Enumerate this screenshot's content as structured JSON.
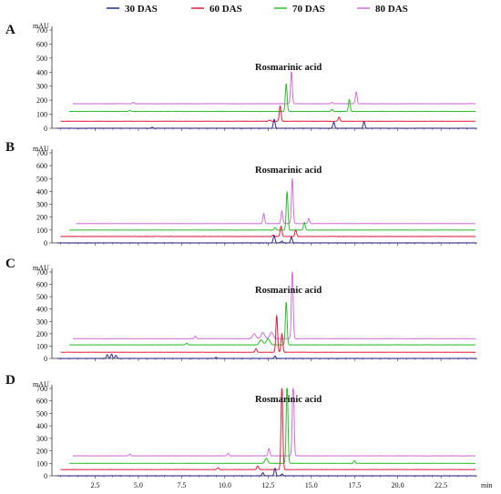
{
  "chart_data": {
    "type": "line",
    "legend": {
      "placement": "top",
      "entries": [
        {
          "label": "30 DAS",
          "color": "#2B2B8C"
        },
        {
          "label": "60 DAS",
          "color": "#E0203A"
        },
        {
          "label": "70 DAS",
          "color": "#2DBE2D"
        },
        {
          "label": "80 DAS",
          "color": "#CF6FD6"
        }
      ]
    },
    "x_unit": "min",
    "y_unit": "mAU",
    "xlim": [
      0,
      24.6
    ],
    "x_ticks": [
      "2.5",
      "5.0",
      "7.5",
      "10.0",
      "12.5",
      "15.0",
      "17.5",
      "20.0",
      "22.5"
    ],
    "grid": false,
    "panels": [
      {
        "letter": "A",
        "annotation": "Rosmarinic acid",
        "ylim": [
          0,
          700
        ],
        "y_ticks": [
          "0",
          "100",
          "200",
          "300",
          "400",
          "500",
          "600",
          "700"
        ],
        "series": [
          {
            "color": "#2B2B8C",
            "offset": 0,
            "x_start": 0.3,
            "peaks": [
              [
                12.85,
                65,
                0.05
              ],
              [
                16.3,
                45,
                0.05
              ],
              [
                18.05,
                48,
                0.05
              ],
              [
                5.8,
                8,
                0.05
              ]
            ]
          },
          {
            "color": "#E0203A",
            "offset": 50,
            "x_start": 0.5,
            "peaks": [
              [
                13.2,
                110,
                0.05
              ],
              [
                16.6,
                30,
                0.05
              ],
              [
                12.6,
                8,
                0.05
              ]
            ]
          },
          {
            "color": "#2DBE2D",
            "offset": 120,
            "x_start": 1.0,
            "peaks": [
              [
                13.55,
                200,
                0.05
              ],
              [
                17.2,
                85,
                0.05
              ],
              [
                16.2,
                15,
                0.05
              ],
              [
                4.5,
                8,
                0.05
              ]
            ]
          },
          {
            "color": "#CF6FD6",
            "offset": 175,
            "x_start": 1.2,
            "peaks": [
              [
                13.85,
                230,
                0.05
              ],
              [
                17.6,
                85,
                0.05
              ],
              [
                4.7,
                10,
                0.05
              ],
              [
                16.2,
                10,
                0.05
              ]
            ]
          }
        ]
      },
      {
        "letter": "B",
        "annotation": "Rosmarinic acid",
        "ylim": [
          0,
          700
        ],
        "y_ticks": [
          "0",
          "100",
          "200",
          "300",
          "400",
          "500",
          "600",
          "700"
        ],
        "series": [
          {
            "color": "#2B2B8C",
            "offset": 0,
            "x_start": 0.3,
            "peaks": [
              [
                12.85,
                60,
                0.05
              ],
              [
                13.85,
                45,
                0.05
              ],
              [
                13.3,
                15,
                0.05
              ]
            ]
          },
          {
            "color": "#E0203A",
            "offset": 50,
            "x_start": 0.5,
            "peaks": [
              [
                13.25,
                80,
                0.05
              ],
              [
                14.1,
                50,
                0.05
              ],
              [
                12.8,
                10,
                0.05
              ]
            ]
          },
          {
            "color": "#2DBE2D",
            "offset": 100,
            "x_start": 1.0,
            "peaks": [
              [
                13.6,
                300,
                0.05
              ],
              [
                14.6,
                60,
                0.05
              ],
              [
                12.9,
                20,
                0.05
              ]
            ]
          },
          {
            "color": "#CF6FD6",
            "offset": 150,
            "x_start": 1.4,
            "peaks": [
              [
                12.25,
                80,
                0.05
              ],
              [
                13.9,
                350,
                0.05
              ],
              [
                13.3,
                100,
                0.05
              ],
              [
                14.85,
                40,
                0.05
              ]
            ]
          }
        ]
      },
      {
        "letter": "C",
        "annotation": "Rosmarinic acid",
        "ylim": [
          0,
          700
        ],
        "y_ticks": [
          "0",
          "100",
          "200",
          "300",
          "400",
          "500",
          "600",
          "700"
        ],
        "series": [
          {
            "color": "#2B2B8C",
            "offset": 0,
            "x_start": 0.3,
            "peaks": [
              [
                3.2,
                30,
                0.05
              ],
              [
                3.45,
                35,
                0.05
              ],
              [
                3.7,
                25,
                0.05
              ],
              [
                12.9,
                20,
                0.05
              ],
              [
                9.5,
                10,
                0.05
              ]
            ]
          },
          {
            "color": "#E0203A",
            "offset": 50,
            "x_start": 0.5,
            "peaks": [
              [
                13.0,
                300,
                0.05
              ],
              [
                13.3,
                150,
                0.05
              ],
              [
                11.8,
                30,
                0.05
              ]
            ]
          },
          {
            "color": "#2DBE2D",
            "offset": 110,
            "x_start": 1.0,
            "peaks": [
              [
                13.55,
                350,
                0.05
              ],
              [
                12.5,
                50,
                0.1
              ],
              [
                12.1,
                40,
                0.1
              ],
              [
                7.8,
                15,
                0.05
              ]
            ]
          },
          {
            "color": "#CF6FD6",
            "offset": 160,
            "x_start": 1.2,
            "peaks": [
              [
                13.9,
                560,
                0.05
              ],
              [
                11.7,
                40,
                0.1
              ],
              [
                12.2,
                50,
                0.1
              ],
              [
                12.7,
                50,
                0.1
              ],
              [
                8.3,
                20,
                0.05
              ]
            ]
          }
        ]
      },
      {
        "letter": "D",
        "annotation": "Rosmarinic acid",
        "ylim": [
          0,
          700
        ],
        "y_ticks": [
          "0",
          "100",
          "200",
          "300",
          "400",
          "500",
          "600",
          "700"
        ],
        "series": [
          {
            "color": "#2B2B8C",
            "offset": 0,
            "x_start": 0.3,
            "peaks": [
              [
                12.9,
                60,
                0.05
              ],
              [
                12.2,
                25,
                0.05
              ],
              [
                13.3,
                15,
                0.05
              ]
            ]
          },
          {
            "color": "#E0203A",
            "offset": 50,
            "x_start": 0.5,
            "peaks": [
              [
                11.9,
                30,
                0.05
              ],
              [
                13.3,
                680,
                0.05
              ],
              [
                9.6,
                15,
                0.05
              ]
            ]
          },
          {
            "color": "#2DBE2D",
            "offset": 100,
            "x_start": 1.0,
            "peaks": [
              [
                13.6,
                650,
                0.05
              ],
              [
                12.4,
                40,
                0.08
              ],
              [
                17.5,
                20,
                0.05
              ]
            ]
          },
          {
            "color": "#CF6FD6",
            "offset": 160,
            "x_start": 1.2,
            "peaks": [
              [
                13.95,
                620,
                0.05
              ],
              [
                12.55,
                60,
                0.05
              ],
              [
                10.2,
                20,
                0.05
              ],
              [
                4.5,
                15,
                0.05
              ]
            ]
          }
        ]
      }
    ]
  }
}
